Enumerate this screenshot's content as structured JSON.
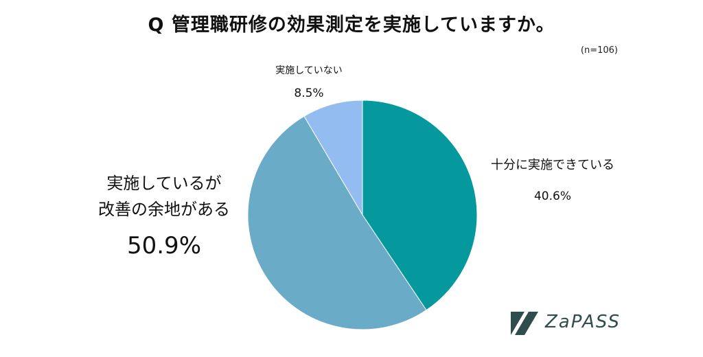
{
  "title": "Q 管理職研修の効果測定を実施していますか。",
  "sample_size": "(n=106)",
  "brand": {
    "name": "ZaPASS",
    "color": "#2f4c4e"
  },
  "chart_data": {
    "type": "pie",
    "start": "top",
    "direction": "clockwise",
    "slices": [
      {
        "label": "十分に実施できている",
        "value": 40.6,
        "display": "40.6%",
        "color": "#05999e"
      },
      {
        "label": "実施しているが改善の余地がある",
        "label_lines": [
          "実施しているが",
          "改善の余地がある"
        ],
        "value": 50.9,
        "display": "50.9%",
        "color": "#6aacc8"
      },
      {
        "label": "実施していない",
        "value": 8.5,
        "display": "8.5%",
        "color": "#93bcf0"
      }
    ]
  }
}
